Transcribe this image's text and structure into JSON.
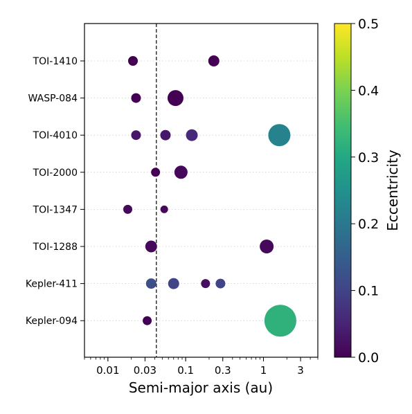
{
  "chart_data": {
    "type": "scatter",
    "xlabel": "Semi-major axis (au)",
    "x_scale": "log",
    "xlim": [
      0.005,
      5
    ],
    "x_ticks": [
      {
        "value": 0.01,
        "label": "0.01"
      },
      {
        "value": 0.03,
        "label": "0.03"
      },
      {
        "value": 0.1,
        "label": "0.1"
      },
      {
        "value": 0.3,
        "label": "0.3"
      },
      {
        "value": 1,
        "label": "1"
      },
      {
        "value": 3,
        "label": "3"
      }
    ],
    "categories": [
      "TOI-1410",
      "WASP-084",
      "TOI-4010",
      "TOI-2000",
      "TOI-1347",
      "TOI-1288",
      "Kepler-411",
      "Kepler-094"
    ],
    "reference_line": {
      "x": 0.042,
      "style": "dashed"
    },
    "colorbar": {
      "label": "Eccentricity",
      "range": [
        0.0,
        0.5
      ],
      "ticks": [
        {
          "value": 0.0,
          "label": "0.0"
        },
        {
          "value": 0.1,
          "label": "0.1"
        },
        {
          "value": 0.2,
          "label": "0.2"
        },
        {
          "value": 0.3,
          "label": "0.3"
        },
        {
          "value": 0.4,
          "label": "0.4"
        },
        {
          "value": 0.5,
          "label": "0.5"
        }
      ],
      "colormap": "viridis"
    },
    "grid": "horizontal-dotted",
    "points": [
      {
        "system": "TOI-1410",
        "a": 0.021,
        "ecc": 0.0,
        "size": 0.7
      },
      {
        "system": "TOI-1410",
        "a": 0.23,
        "ecc": 0.0,
        "size": 0.8
      },
      {
        "system": "WASP-084",
        "a": 0.023,
        "ecc": 0.0,
        "size": 0.7
      },
      {
        "system": "WASP-084",
        "a": 0.074,
        "ecc": 0.0,
        "size": 1.15
      },
      {
        "system": "TOI-4010",
        "a": 0.023,
        "ecc": 0.03,
        "size": 0.7
      },
      {
        "system": "TOI-4010",
        "a": 0.055,
        "ecc": 0.03,
        "size": 0.75
      },
      {
        "system": "TOI-4010",
        "a": 0.12,
        "ecc": 0.06,
        "size": 0.85
      },
      {
        "system": "TOI-4010",
        "a": 1.6,
        "ecc": 0.22,
        "size": 1.6
      },
      {
        "system": "TOI-2000",
        "a": 0.041,
        "ecc": 0.0,
        "size": 0.65
      },
      {
        "system": "TOI-2000",
        "a": 0.087,
        "ecc": 0.01,
        "size": 0.95
      },
      {
        "system": "TOI-1347",
        "a": 0.018,
        "ecc": 0.01,
        "size": 0.65
      },
      {
        "system": "TOI-1347",
        "a": 0.053,
        "ecc": 0.01,
        "size": 0.55
      },
      {
        "system": "TOI-1288",
        "a": 0.036,
        "ecc": 0.01,
        "size": 0.85
      },
      {
        "system": "TOI-1288",
        "a": 1.1,
        "ecc": 0.01,
        "size": 1.0
      },
      {
        "system": "Kepler-411",
        "a": 0.036,
        "ecc": 0.12,
        "size": 0.75
      },
      {
        "system": "Kepler-411",
        "a": 0.07,
        "ecc": 0.1,
        "size": 0.8
      },
      {
        "system": "Kepler-411",
        "a": 0.18,
        "ecc": 0.02,
        "size": 0.65
      },
      {
        "system": "Kepler-411",
        "a": 0.28,
        "ecc": 0.1,
        "size": 0.7
      },
      {
        "system": "Kepler-094",
        "a": 0.032,
        "ecc": 0.0,
        "size": 0.65
      },
      {
        "system": "Kepler-094",
        "a": 1.65,
        "ecc": 0.32,
        "size": 2.3
      }
    ]
  }
}
